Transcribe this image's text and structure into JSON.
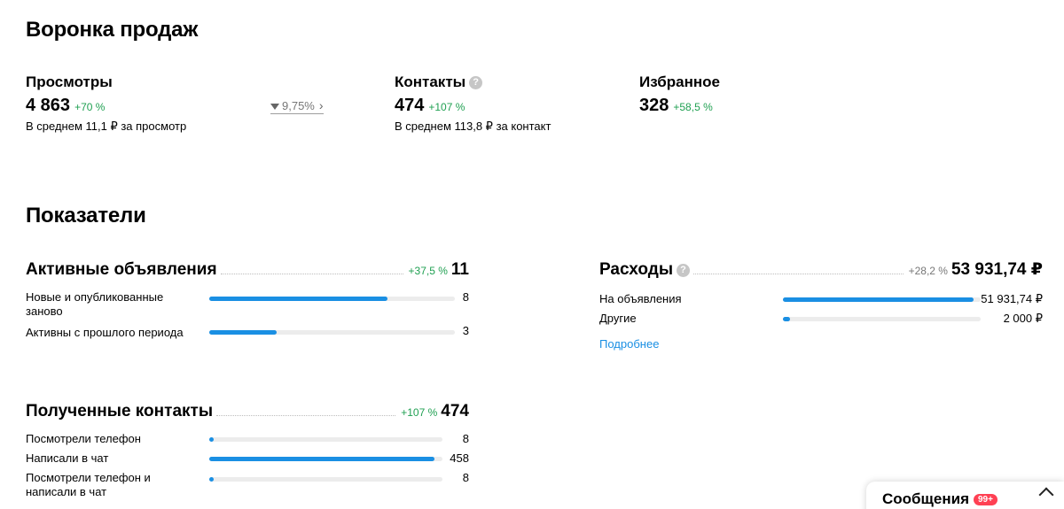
{
  "funnel": {
    "title": "Воронка продаж",
    "views": {
      "label": "Просмотры",
      "value": "4 863",
      "delta": "+70 %",
      "sub": "В среднем 11,1 ₽ за просмотр"
    },
    "conversion": {
      "value": "9,75%"
    },
    "contacts": {
      "label": "Контакты",
      "value": "474",
      "delta": "+107 %",
      "sub": "В среднем 113,8 ₽ за контакт"
    },
    "favorites": {
      "label": "Избранное",
      "value": "328",
      "delta": "+58,5 %"
    }
  },
  "indicators": {
    "title": "Показатели",
    "active_ads": {
      "title": "Активные объявления",
      "delta": "+37,5 %",
      "total": "11",
      "rows": [
        {
          "label": "Новые и опубликованные заново",
          "value": "8",
          "fraction": 0.727
        },
        {
          "label": "Активны с прошлого периода",
          "value": "3",
          "fraction": 0.273
        }
      ]
    },
    "expenses": {
      "title": "Расходы",
      "delta": "+28,2 %",
      "total": "53 931,74 ₽",
      "rows": [
        {
          "label": "На объявления",
          "value": "51 931,74 ₽",
          "fraction": 0.963
        },
        {
          "label": "Другие",
          "value": "2 000 ₽",
          "fraction": 0.037
        }
      ],
      "more_link": "Подробнее"
    },
    "contacts_received": {
      "title": "Полученные контакты",
      "delta": "+107 %",
      "total": "474",
      "rows": [
        {
          "label": "Посмотрели телефон",
          "value": "8",
          "fraction": 0.017
        },
        {
          "label": "Написали в чат",
          "value": "458",
          "fraction": 0.966
        },
        {
          "label": "Посмотрели телефон и написали в чат",
          "value": "8",
          "fraction": 0.017
        }
      ]
    }
  },
  "messenger": {
    "title": "Сообщения",
    "badge": "99+"
  },
  "icons": {
    "help": "help-icon",
    "filter": "filter-icon",
    "chevron": "chevron-right-icon",
    "collapse": "chevron-up-icon"
  },
  "colors": {
    "accent": "#1a8fe3",
    "positive": "#20a052",
    "badge": "#ff4053"
  }
}
